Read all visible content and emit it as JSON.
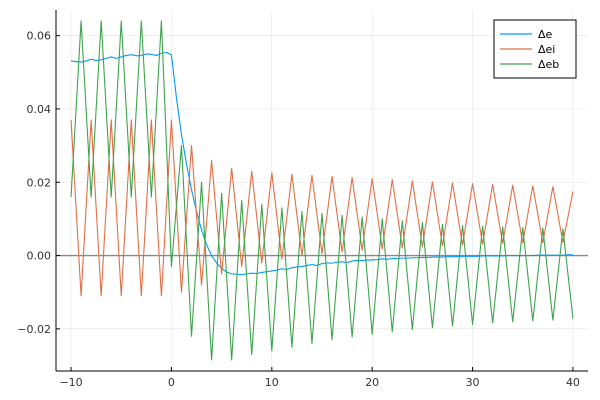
{
  "chart_data": {
    "type": "line",
    "title": "",
    "xlabel": "",
    "ylabel": "",
    "xlim": [
      -11.5,
      41.5
    ],
    "ylim": [
      -0.0315,
      0.067
    ],
    "xticks": [
      -10,
      0,
      10,
      20,
      30,
      40
    ],
    "xtick_labels": [
      "−10",
      "0",
      "10",
      "20",
      "30",
      "40"
    ],
    "yticks": [
      -0.02,
      0.0,
      0.02,
      0.04,
      0.06
    ],
    "ytick_labels": [
      "−0.02",
      "0.00",
      "0.02",
      "0.04",
      "0.06"
    ],
    "grid": true,
    "legend_position": "top-right",
    "hline": {
      "y": 0.0,
      "color": "#888888"
    },
    "series": [
      {
        "name": "Δe",
        "color": "#009AFA",
        "x": [
          -10,
          -9.5,
          -9,
          -8.5,
          -8,
          -7.5,
          -7,
          -6.5,
          -6,
          -5.5,
          -5,
          -4.5,
          -4,
          -3.5,
          -3,
          -2.5,
          -2,
          -1.5,
          -1,
          -0.5,
          0,
          0.5,
          1,
          1.5,
          2,
          2.5,
          3,
          3.5,
          4,
          4.5,
          5,
          5.5,
          6,
          6.5,
          7,
          7.5,
          8,
          8.5,
          9,
          9.5,
          10,
          10.5,
          11,
          11.5,
          12,
          12.5,
          13,
          13.5,
          14,
          14.5,
          15,
          15.5,
          16,
          16.5,
          17,
          17.5,
          18,
          18.5,
          19,
          19.5,
          20,
          20.5,
          21,
          21.5,
          22,
          22.5,
          23,
          23.5,
          24,
          24.5,
          25,
          25.5,
          26,
          26.5,
          27,
          27.5,
          28,
          28.5,
          29,
          29.5,
          30,
          30.5,
          31,
          31.5,
          32,
          32.5,
          33,
          33.5,
          34,
          34.5,
          35,
          35.5,
          36,
          36.5,
          37,
          37.5,
          38,
          38.5,
          39,
          39.5,
          40
        ],
        "y": [
          0.0531,
          0.0529,
          0.0528,
          0.0531,
          0.0536,
          0.0532,
          0.0534,
          0.0538,
          0.0542,
          0.0538,
          0.0542,
          0.0546,
          0.0548,
          0.0545,
          0.0546,
          0.055,
          0.0549,
          0.0546,
          0.0552,
          0.0554,
          0.0548,
          0.043,
          0.033,
          0.025,
          0.018,
          0.012,
          0.007,
          0.003,
          0.0,
          -0.002,
          -0.0035,
          -0.0045,
          -0.005,
          -0.0051,
          -0.0052,
          -0.005,
          -0.0048,
          -0.0049,
          -0.0046,
          -0.0044,
          -0.0042,
          -0.004,
          -0.0036,
          -0.0038,
          -0.0033,
          -0.0031,
          -0.003,
          -0.0027,
          -0.0025,
          -0.0027,
          -0.0022,
          -0.002,
          -0.0021,
          -0.0018,
          -0.0017,
          -0.0019,
          -0.0015,
          -0.0013,
          -0.0014,
          -0.0012,
          -0.0012,
          -0.0011,
          -0.0009,
          -0.001,
          -0.0008,
          -0.0008,
          -0.0007,
          -0.0007,
          -0.0006,
          -0.0006,
          -0.0005,
          -0.0005,
          -0.0004,
          -0.0004,
          -0.0004,
          -0.0003,
          -0.0003,
          -0.0003,
          -0.0002,
          -0.0002,
          -0.0002,
          -0.0002,
          -0.0001,
          -0.0001,
          -0.0001,
          -0.0001,
          -0.0001,
          0.0,
          0.0,
          0.0,
          0.0,
          0.0,
          0.0,
          0.0001,
          0.0001,
          0.0001,
          0.0001,
          0.0001,
          0.0001,
          0.0002,
          0.0002
        ]
      },
      {
        "name": "Δei",
        "color": "#E26F46",
        "x": [
          -10,
          -9,
          -8,
          -7,
          -6,
          -5,
          -4,
          -3,
          -2,
          -1,
          0,
          1,
          2,
          3,
          4,
          5,
          6,
          7,
          8,
          9,
          10,
          11,
          12,
          13,
          14,
          15,
          16,
          17,
          18,
          19,
          20,
          21,
          22,
          23,
          24,
          25,
          26,
          27,
          28,
          29,
          30,
          31,
          32,
          33,
          34,
          35,
          36,
          37,
          38,
          39,
          40
        ],
        "y": [
          0.037,
          -0.011,
          0.037,
          -0.011,
          0.037,
          -0.011,
          0.037,
          -0.011,
          0.037,
          -0.011,
          0.037,
          -0.01,
          0.03,
          -0.008,
          0.026,
          -0.005,
          0.0238,
          -0.003,
          0.023,
          -0.002,
          0.0226,
          -0.001,
          0.0222,
          0.0,
          0.0219,
          0.0005,
          0.0216,
          0.001,
          0.0213,
          0.0015,
          0.021,
          0.0018,
          0.0207,
          0.0021,
          0.0204,
          0.0024,
          0.0201,
          0.0027,
          0.0198,
          0.0029,
          0.0196,
          0.0031,
          0.0194,
          0.0033,
          0.0192,
          0.0034,
          0.019,
          0.0035,
          0.0188,
          0.0036,
          0.0175
        ]
      },
      {
        "name": "Δeb",
        "color": "#3DA44D",
        "x": [
          -10,
          -9,
          -8,
          -7,
          -6,
          -5,
          -4,
          -3,
          -2,
          -1,
          0,
          1,
          2,
          3,
          4,
          5,
          6,
          7,
          8,
          9,
          10,
          11,
          12,
          13,
          14,
          15,
          16,
          17,
          18,
          19,
          20,
          21,
          22,
          23,
          24,
          25,
          26,
          27,
          28,
          29,
          30,
          31,
          32,
          33,
          34,
          35,
          36,
          37,
          38,
          39,
          40
        ],
        "y": [
          0.016,
          0.064,
          0.016,
          0.064,
          0.016,
          0.064,
          0.016,
          0.064,
          0.016,
          0.064,
          -0.003,
          0.03,
          -0.022,
          0.02,
          -0.0285,
          0.017,
          -0.0285,
          0.015,
          -0.027,
          0.014,
          -0.026,
          0.013,
          -0.025,
          0.012,
          -0.024,
          0.0115,
          -0.023,
          0.011,
          -0.0222,
          0.0105,
          -0.0215,
          0.01,
          -0.0208,
          0.0095,
          -0.0202,
          0.009,
          -0.0197,
          0.0085,
          -0.0192,
          0.0082,
          -0.0188,
          0.008,
          -0.0184,
          0.0078,
          -0.0181,
          0.0076,
          -0.0178,
          0.0075,
          -0.0176,
          0.0073,
          -0.0172
        ]
      }
    ]
  }
}
